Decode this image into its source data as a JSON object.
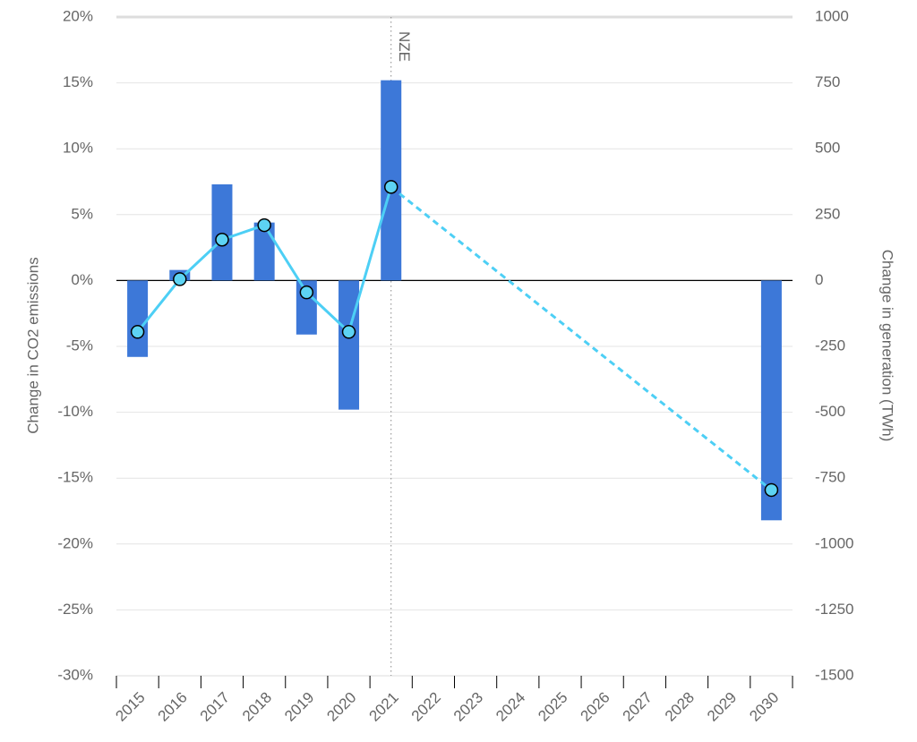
{
  "chart_data": {
    "type": "bar",
    "categories": [
      "2015",
      "2016",
      "2017",
      "2018",
      "2019",
      "2020",
      "2021",
      "2022",
      "2023",
      "2024",
      "2025",
      "2026",
      "2027",
      "2028",
      "2029",
      "2030"
    ],
    "series": [
      {
        "type": "bar",
        "color": "#3d78d8",
        "values": [
          -5.8,
          0.8,
          7.3,
          4.4,
          -4.1,
          -9.8,
          15.2,
          null,
          null,
          null,
          null,
          null,
          null,
          null,
          null,
          -18.2
        ]
      },
      {
        "type": "line",
        "axis": "y2",
        "color": "#4dcff5",
        "gap_style": "dashed",
        "values": [
          -195,
          5,
          155,
          210,
          -45,
          -195,
          355,
          null,
          null,
          null,
          null,
          null,
          null,
          null,
          null,
          -795
        ]
      }
    ],
    "ylabel": "Change in CO2 emissions",
    "y2label": "Change in generation (TWh)",
    "ylim": [
      -30,
      20
    ],
    "yticks": [
      {
        "value": 20,
        "label": "20%"
      },
      {
        "value": 15,
        "label": "15%"
      },
      {
        "value": 10,
        "label": "10%"
      },
      {
        "value": 5,
        "label": "5%"
      },
      {
        "value": 0,
        "label": "0%"
      },
      {
        "value": -5,
        "label": "-5%"
      },
      {
        "value": -10,
        "label": "-10%"
      },
      {
        "value": -15,
        "label": "-15%"
      },
      {
        "value": -20,
        "label": "-20%"
      },
      {
        "value": -25,
        "label": "-25%"
      },
      {
        "value": -30,
        "label": "-30%"
      }
    ],
    "y2lim": [
      -1500,
      1000
    ],
    "y2ticks": [
      1000,
      750,
      500,
      250,
      0,
      -250,
      -500,
      -750,
      -1000,
      -1250,
      -1500
    ],
    "grid": true,
    "annotation": {
      "text": "NZE",
      "category": 6
    }
  }
}
